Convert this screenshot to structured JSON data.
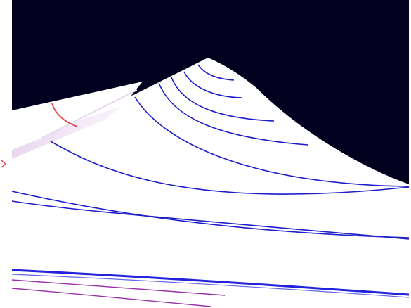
{
  "viewport": {
    "background_color": "#01001f",
    "frame_color": "#ffffff"
  },
  "surfaces": {
    "main_surface_color": "#ffffff",
    "flap_surface_color": "#ffffff",
    "flap_shade_color": "#e9d6f0",
    "lower_band_color": "#ffffff",
    "lower_band_edge_color": "#2323dd"
  },
  "contours": {
    "color": "#1d1dc9",
    "count": 9
  },
  "highlight_contour": {
    "color": "#e0443c"
  },
  "base_lines": {
    "color": "#9a2fa8",
    "count": 2
  },
  "edge_marker": {
    "color": "#e0443c"
  }
}
